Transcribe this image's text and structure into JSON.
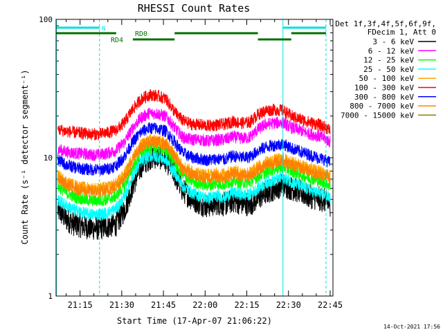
{
  "chart_data": {
    "type": "line",
    "title": "RHESSI Count Rates",
    "xlabel": "Start Time (17-Apr-07 21:06:22)",
    "ylabel": "Count Rate (s⁻¹ detector segment⁻¹)",
    "ylog": true,
    "ylim": [
      1,
      100
    ],
    "xlim": [
      "21:06:22",
      "22:46:00"
    ],
    "x_ticks": [
      "21:15",
      "21:30",
      "21:45",
      "22:00",
      "22:15",
      "22:30",
      "22:45"
    ],
    "y_ticks": [
      "1",
      "10",
      "100"
    ],
    "legend": {
      "position": "right",
      "header": [
        "Det 1f,3f,4f,5f,6f,9f,",
        "FDecim 1, Att 0"
      ]
    },
    "series": [
      {
        "name": "3 - 6 keV",
        "color": "#000000",
        "x": [
          "21:07",
          "21:10",
          "21:13",
          "21:16",
          "21:19",
          "21:22",
          "21:25",
          "21:28",
          "21:31",
          "21:34",
          "21:37",
          "21:40",
          "21:43",
          "21:46",
          "21:49",
          "21:52",
          "21:55",
          "21:58",
          "22:01",
          "22:04",
          "22:07",
          "22:10",
          "22:13",
          "22:16",
          "22:19",
          "22:22",
          "22:25",
          "22:28",
          "22:31",
          "22:34",
          "22:37",
          "22:40",
          "22:43",
          "22:45"
        ],
        "values": [
          4.2,
          3.6,
          3.3,
          3.2,
          3.1,
          3.1,
          3.2,
          3.3,
          4.2,
          6.3,
          8.7,
          10.0,
          10.2,
          9.6,
          7.6,
          5.8,
          5.1,
          4.7,
          4.5,
          4.7,
          4.6,
          4.9,
          4.7,
          4.6,
          5.1,
          5.6,
          6.0,
          6.4,
          6.0,
          5.7,
          5.3,
          5.1,
          4.9,
          4.6
        ]
      },
      {
        "name": "6 - 12 keV",
        "color": "#ff00ff",
        "x": [
          "21:07",
          "21:10",
          "21:13",
          "21:16",
          "21:19",
          "21:22",
          "21:25",
          "21:28",
          "21:31",
          "21:34",
          "21:37",
          "21:40",
          "21:43",
          "21:46",
          "21:49",
          "21:52",
          "21:55",
          "21:58",
          "22:01",
          "22:04",
          "22:07",
          "22:10",
          "22:13",
          "22:16",
          "22:19",
          "22:22",
          "22:25",
          "22:28",
          "22:31",
          "22:34",
          "22:37",
          "22:40",
          "22:43",
          "22:45"
        ],
        "values": [
          11.5,
          11.0,
          10.8,
          10.7,
          10.5,
          10.5,
          10.8,
          11.3,
          13.0,
          16.5,
          19.5,
          21.0,
          20.8,
          19.8,
          16.5,
          14.0,
          13.5,
          13.5,
          13.2,
          13.4,
          13.5,
          14.2,
          13.8,
          14.0,
          16.0,
          17.5,
          17.8,
          18.0,
          16.5,
          15.8,
          15.0,
          14.5,
          13.8,
          13.0
        ]
      },
      {
        "name": "12 - 25 keV",
        "color": "#00ff00",
        "x": [
          "21:07",
          "21:10",
          "21:13",
          "21:16",
          "21:19",
          "21:22",
          "21:25",
          "21:28",
          "21:31",
          "21:34",
          "21:37",
          "21:40",
          "21:43",
          "21:46",
          "21:49",
          "21:52",
          "21:55",
          "21:58",
          "22:01",
          "22:04",
          "22:07",
          "22:10",
          "22:13",
          "22:16",
          "22:19",
          "22:22",
          "22:25",
          "22:28",
          "22:31",
          "22:34",
          "22:37",
          "22:40",
          "22:43",
          "22:45"
        ],
        "values": [
          6.2,
          5.6,
          5.2,
          5.0,
          4.9,
          4.9,
          5.0,
          5.3,
          6.3,
          8.6,
          10.8,
          11.8,
          11.7,
          11.2,
          9.2,
          7.4,
          6.8,
          6.5,
          6.3,
          6.5,
          6.4,
          6.8,
          6.6,
          6.6,
          7.3,
          7.9,
          8.3,
          8.6,
          8.0,
          7.6,
          7.2,
          6.9,
          6.6,
          6.2
        ]
      },
      {
        "name": "25 - 50 keV",
        "color": "#00ffff",
        "x": [
          "21:07",
          "21:10",
          "21:13",
          "21:16",
          "21:19",
          "21:22",
          "21:25",
          "21:28",
          "21:31",
          "21:34",
          "21:37",
          "21:40",
          "21:43",
          "21:46",
          "21:49",
          "21:52",
          "21:55",
          "21:58",
          "22:01",
          "22:04",
          "22:07",
          "22:10",
          "22:13",
          "22:16",
          "22:19",
          "22:22",
          "22:25",
          "22:28",
          "22:31",
          "22:34",
          "22:37",
          "22:40",
          "22:43",
          "22:45"
        ],
        "values": [
          5.0,
          4.5,
          4.2,
          4.0,
          3.9,
          3.9,
          4.0,
          4.3,
          5.2,
          7.4,
          9.4,
          10.3,
          10.2,
          9.6,
          7.8,
          6.2,
          5.6,
          5.3,
          5.1,
          5.3,
          5.2,
          5.6,
          5.4,
          5.4,
          6.0,
          6.6,
          6.9,
          7.2,
          6.7,
          6.3,
          5.9,
          5.6,
          5.4,
          5.1
        ]
      },
      {
        "name": "50 - 100 keV",
        "color": "#ffa500",
        "x": [
          "21:07",
          "21:10",
          "21:13",
          "21:16",
          "21:19",
          "21:22",
          "21:25",
          "21:28",
          "21:31",
          "21:34",
          "21:37",
          "21:40",
          "21:43",
          "21:46",
          "21:49",
          "21:52",
          "21:55",
          "21:58",
          "22:01",
          "22:04",
          "22:07",
          "22:10",
          "22:13",
          "22:16",
          "22:19",
          "22:22",
          "22:25",
          "22:28",
          "22:31",
          "22:34",
          "22:37",
          "22:40",
          "22:43",
          "22:45"
        ],
        "values": [
          7.4,
          6.7,
          6.3,
          6.1,
          6.0,
          6.0,
          6.1,
          6.5,
          7.6,
          10.1,
          12.4,
          13.4,
          13.3,
          12.7,
          10.6,
          8.7,
          8.0,
          7.7,
          7.5,
          7.7,
          7.6,
          8.1,
          7.8,
          7.8,
          8.6,
          9.3,
          9.6,
          9.9,
          9.3,
          8.9,
          8.5,
          8.1,
          7.8,
          7.4
        ]
      },
      {
        "name": "100 - 300 keV",
        "color": "#ff0000",
        "x": [
          "21:07",
          "21:10",
          "21:13",
          "21:16",
          "21:19",
          "21:22",
          "21:25",
          "21:28",
          "21:31",
          "21:34",
          "21:37",
          "21:40",
          "21:43",
          "21:46",
          "21:49",
          "21:52",
          "21:55",
          "21:58",
          "22:01",
          "22:04",
          "22:07",
          "22:10",
          "22:13",
          "22:16",
          "22:19",
          "22:22",
          "22:25",
          "22:28",
          "22:31",
          "22:34",
          "22:37",
          "22:40",
          "22:43",
          "22:45"
        ],
        "values": [
          16.0,
          15.5,
          15.2,
          15.0,
          14.8,
          14.8,
          15.2,
          15.8,
          18.0,
          22.5,
          26.5,
          28.5,
          28.0,
          26.5,
          21.5,
          18.5,
          17.5,
          17.3,
          17.0,
          17.3,
          17.4,
          18.3,
          17.8,
          18.0,
          20.5,
          22.0,
          22.2,
          22.0,
          20.0,
          19.0,
          18.2,
          17.5,
          16.7,
          15.8
        ]
      },
      {
        "name": "300 - 800 keV",
        "color": "#0000ff",
        "x": [
          "21:07",
          "21:10",
          "21:13",
          "21:16",
          "21:19",
          "21:22",
          "21:25",
          "21:28",
          "21:31",
          "21:34",
          "21:37",
          "21:40",
          "21:43",
          "21:46",
          "21:49",
          "21:52",
          "21:55",
          "21:58",
          "22:01",
          "22:04",
          "22:07",
          "22:10",
          "22:13",
          "22:16",
          "22:19",
          "22:22",
          "22:25",
          "22:28",
          "22:31",
          "22:34",
          "22:37",
          "22:40",
          "22:43",
          "22:45"
        ],
        "values": [
          9.6,
          8.9,
          8.5,
          8.3,
          8.2,
          8.2,
          8.3,
          8.8,
          10.2,
          13.0,
          15.4,
          16.4,
          16.2,
          15.5,
          13.0,
          10.8,
          10.1,
          9.8,
          9.6,
          9.8,
          9.7,
          10.3,
          10.0,
          10.1,
          11.2,
          12.0,
          12.3,
          12.6,
          11.7,
          11.1,
          10.6,
          10.1,
          9.7,
          9.2
        ]
      },
      {
        "name": "800 - 7000 keV",
        "color": "#ff8000",
        "x": [
          "21:07",
          "21:10",
          "21:13",
          "21:16",
          "21:19",
          "21:22",
          "21:25",
          "21:28",
          "21:31",
          "21:34",
          "21:37",
          "21:40",
          "21:43",
          "21:46",
          "21:49",
          "21:52",
          "21:55",
          "21:58",
          "22:01",
          "22:04",
          "22:07",
          "22:10",
          "22:13",
          "22:16",
          "22:19",
          "22:22",
          "22:25",
          "22:28",
          "22:31",
          "22:34",
          "22:37",
          "22:40",
          "22:43",
          "22:45"
        ],
        "values": [
          7.0,
          6.4,
          6.0,
          5.8,
          5.7,
          5.7,
          5.8,
          6.2,
          7.2,
          9.7,
          12.0,
          13.0,
          12.9,
          12.3,
          10.2,
          8.3,
          7.6,
          7.3,
          7.1,
          7.3,
          7.2,
          7.7,
          7.4,
          7.4,
          8.2,
          8.9,
          9.2,
          9.5,
          8.9,
          8.5,
          8.1,
          7.7,
          7.4,
          7.0
        ]
      },
      {
        "name": "7000 - 15000 keV",
        "color": "#808000",
        "x": [],
        "values": []
      }
    ],
    "annotations": {
      "rd0_label": "RD0",
      "rd4_label": "RD4",
      "n_label": "N",
      "timestamp": "14-Oct-2021 17:56"
    }
  }
}
